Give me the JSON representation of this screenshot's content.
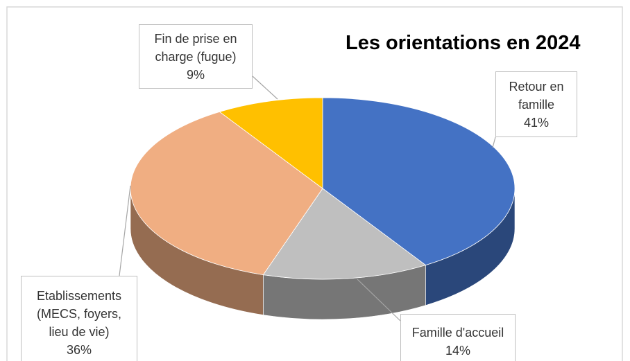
{
  "chart_data": {
    "type": "pie3d",
    "title": "Les orientations en 2024",
    "categories": [
      "Retour en famille",
      "Famille d'accueil",
      "Etablissements (MECS, foyers, lieu de vie)",
      "Fin de prise en charge (fugue)"
    ],
    "values": [
      41,
      14,
      36,
      9
    ],
    "value_labels": [
      "41%",
      "14%",
      "36%",
      "9%"
    ],
    "colors": [
      "#4472c4",
      "#bfbfbf",
      "#f0ae82",
      "#ffc000"
    ]
  }
}
